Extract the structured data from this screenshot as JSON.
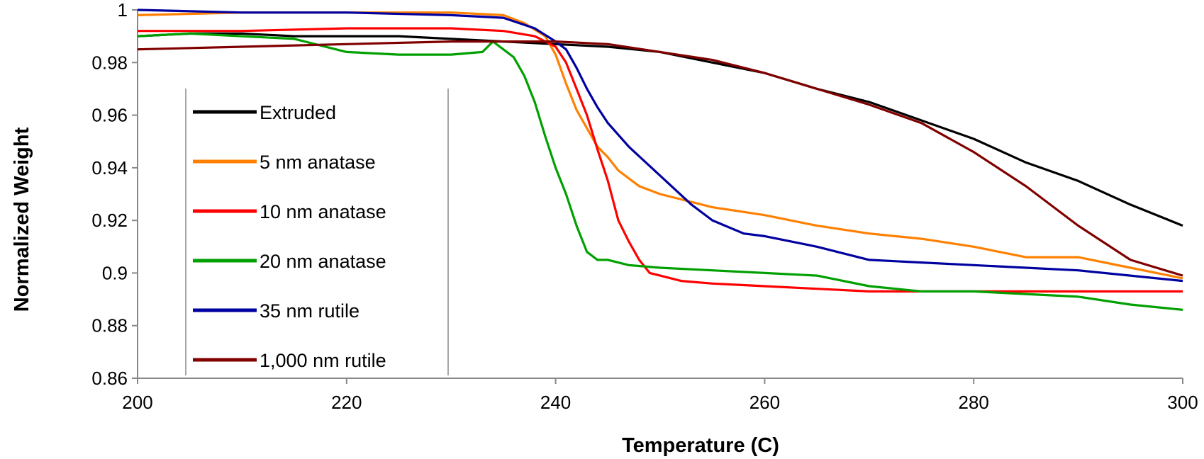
{
  "chart_data": {
    "type": "line",
    "title": "",
    "xlabel": "Temperature (C)",
    "ylabel": "Normalized Weight",
    "xlim": [
      200,
      300
    ],
    "ylim": [
      0.86,
      1.0
    ],
    "x_ticks": [
      200,
      220,
      240,
      260,
      280,
      300
    ],
    "x_tick_labels": [
      "200",
      "220",
      "240",
      "260",
      "280",
      "300"
    ],
    "y_ticks": [
      0.86,
      0.88,
      0.9,
      0.92,
      0.94,
      0.96,
      0.98,
      1.0
    ],
    "y_tick_labels": [
      "0.86",
      "0.88",
      "0.9",
      "0.92",
      "0.94",
      "0.96",
      "0.98",
      "1"
    ],
    "grid": false,
    "legend_position": "left",
    "series": [
      {
        "name": "Extruded",
        "color": "#000000",
        "x": [
          200,
          205,
          210,
          215,
          220,
          225,
          230,
          235,
          240,
          245,
          250,
          255,
          260,
          265,
          270,
          275,
          280,
          285,
          290,
          295,
          300
        ],
        "y": [
          0.99,
          0.991,
          0.991,
          0.99,
          0.99,
          0.99,
          0.989,
          0.988,
          0.987,
          0.986,
          0.984,
          0.98,
          0.976,
          0.97,
          0.965,
          0.958,
          0.951,
          0.942,
          0.935,
          0.926,
          0.918
        ]
      },
      {
        "name": "5 nm anatase",
        "color": "#ff8000",
        "x": [
          200,
          210,
          220,
          230,
          235,
          237,
          239,
          240,
          241,
          242,
          243,
          244,
          245,
          246,
          248,
          250,
          255,
          260,
          265,
          270,
          275,
          280,
          285,
          290,
          295,
          300
        ],
        "y": [
          0.998,
          0.999,
          0.999,
          0.999,
          0.998,
          0.995,
          0.99,
          0.983,
          0.972,
          0.962,
          0.955,
          0.948,
          0.944,
          0.939,
          0.933,
          0.93,
          0.925,
          0.922,
          0.918,
          0.915,
          0.913,
          0.91,
          0.906,
          0.906,
          0.902,
          0.898
        ]
      },
      {
        "name": "10 nm anatase",
        "color": "#ff0000",
        "x": [
          200,
          210,
          220,
          230,
          235,
          238,
          240,
          241,
          242,
          243,
          244,
          245,
          246,
          247,
          248,
          249,
          250,
          252,
          255,
          260,
          265,
          270,
          275,
          280,
          285,
          290,
          295,
          300
        ],
        "y": [
          0.992,
          0.992,
          0.993,
          0.993,
          0.992,
          0.99,
          0.986,
          0.98,
          0.97,
          0.96,
          0.947,
          0.935,
          0.92,
          0.912,
          0.905,
          0.9,
          0.899,
          0.897,
          0.896,
          0.895,
          0.894,
          0.893,
          0.893,
          0.893,
          0.893,
          0.893,
          0.893,
          0.893
        ]
      },
      {
        "name": "20 nm anatase",
        "color": "#00a000",
        "x": [
          200,
          205,
          210,
          215,
          220,
          225,
          230,
          233,
          234,
          235,
          236,
          237,
          238,
          239,
          240,
          241,
          242,
          243,
          244,
          245,
          247,
          250,
          255,
          260,
          265,
          270,
          275,
          280,
          285,
          290,
          295,
          300
        ],
        "y": [
          0.99,
          0.991,
          0.99,
          0.989,
          0.984,
          0.983,
          0.983,
          0.984,
          0.988,
          0.985,
          0.982,
          0.975,
          0.965,
          0.952,
          0.94,
          0.93,
          0.918,
          0.908,
          0.905,
          0.905,
          0.903,
          0.902,
          0.901,
          0.9,
          0.899,
          0.895,
          0.893,
          0.893,
          0.892,
          0.891,
          0.888,
          0.886
        ]
      },
      {
        "name": "35 nm rutile",
        "color": "#0000a0",
        "x": [
          200,
          210,
          220,
          230,
          235,
          238,
          240,
          241,
          242,
          243,
          244,
          245,
          247,
          250,
          253,
          255,
          258,
          260,
          265,
          270,
          275,
          280,
          285,
          290,
          295,
          300
        ],
        "y": [
          1.0,
          0.999,
          0.999,
          0.998,
          0.997,
          0.993,
          0.988,
          0.985,
          0.978,
          0.97,
          0.963,
          0.957,
          0.948,
          0.937,
          0.926,
          0.92,
          0.915,
          0.914,
          0.91,
          0.905,
          0.904,
          0.903,
          0.902,
          0.901,
          0.899,
          0.897
        ]
      },
      {
        "name": "1,000 nm rutile",
        "color": "#800000",
        "x": [
          200,
          210,
          220,
          230,
          240,
          245,
          250,
          255,
          260,
          265,
          270,
          275,
          280,
          285,
          290,
          295,
          300
        ],
        "y": [
          0.985,
          0.986,
          0.987,
          0.988,
          0.988,
          0.987,
          0.984,
          0.981,
          0.976,
          0.97,
          0.964,
          0.957,
          0.946,
          0.933,
          0.918,
          0.905,
          0.899
        ]
      }
    ]
  }
}
